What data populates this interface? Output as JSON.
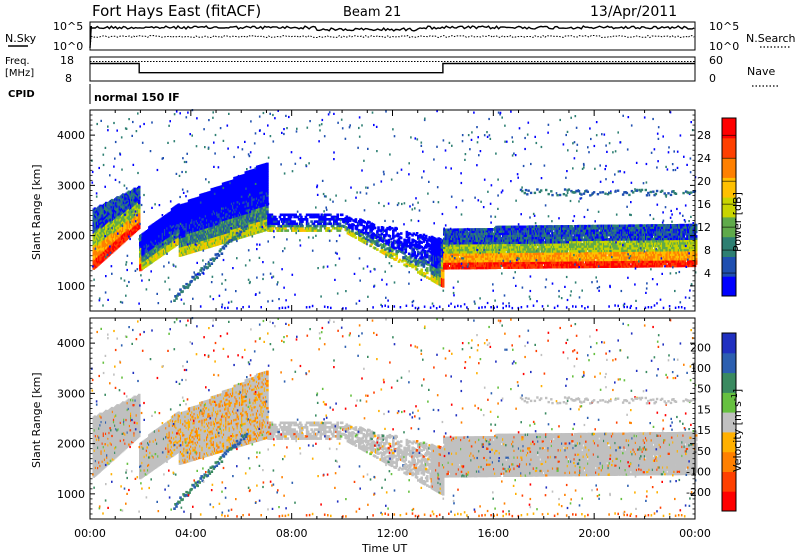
{
  "header": {
    "station": "Fort Hays East (fitACF)",
    "beam": "Beam 21",
    "date": "13/Apr/2011"
  },
  "panels": {
    "nsky_label": "N.Sky",
    "nsearch_label": "N.Search",
    "nsky_ticks": [
      "10^5",
      "10^0"
    ],
    "nsearch_ticks": [
      "10^5",
      "10^0"
    ],
    "freq_label_1": "Freq.",
    "freq_label_2": "[MHz]",
    "freq_ticks": [
      "18",
      "8"
    ],
    "nave_label": "Nave",
    "nave_ticks": [
      "60",
      "0"
    ],
    "cpid_label": "CPID",
    "cpid_value": "normal 150 IF"
  },
  "chart_data": [
    {
      "type": "heatmap",
      "name": "power",
      "ylabel": "Slant Range [km]",
      "xlabel": "Time UT",
      "xlim_hours": [
        0,
        24
      ],
      "ylim": [
        500,
        4500
      ],
      "x_ticks": [
        "00:00",
        "04:00",
        "08:00",
        "12:00",
        "16:00",
        "20:00",
        "00:00"
      ],
      "y_ticks": [
        "1000",
        "2000",
        "3000",
        "4000"
      ],
      "colorbar_label": "Power [dB]",
      "colorbar_ticks": [
        "4",
        "8",
        "12",
        "16",
        "20",
        "24",
        "28"
      ],
      "colorbar_range": [
        0,
        31
      ],
      "colors": [
        "#0000ff",
        "#1f4fb0",
        "#2e7f72",
        "#5faa4a",
        "#c8d400",
        "#ffc000",
        "#ff8000",
        "#ff4000",
        "#ff0000"
      ]
    },
    {
      "type": "heatmap",
      "name": "velocity",
      "ylabel": "Slant Range [km]",
      "xlabel": "Time UT",
      "xlim_hours": [
        0,
        24
      ],
      "ylim": [
        500,
        4500
      ],
      "x_ticks": [
        "00:00",
        "04:00",
        "08:00",
        "12:00",
        "16:00",
        "20:00",
        "00:00"
      ],
      "y_ticks": [
        "1000",
        "2000",
        "3000",
        "4000"
      ],
      "colorbar_label": "Velocity [m s-1]",
      "colorbar_ticks": [
        "200",
        "100",
        "50",
        "15",
        "-15",
        "-50",
        "-100",
        "-200"
      ],
      "colors": [
        "#2030c0",
        "#2c5fb0",
        "#3a8a60",
        "#66c040",
        "#c0c0c0",
        "#ffb000",
        "#ff8000",
        "#ff4000",
        "#ff0000"
      ]
    },
    {
      "type": "line",
      "name": "frequency",
      "x_hours": [
        0,
        1.95,
        1.95,
        14.0,
        14.0,
        24
      ],
      "y_mhz": [
        15.5,
        15.5,
        10.5,
        10.5,
        15.5,
        15.5
      ]
    }
  ],
  "axis": {
    "xlabel": "Time UT"
  },
  "colorbars": {
    "power_label": "Power [dB]",
    "velocity_label": "Velocity [m s",
    "velocity_label_sup": "-1",
    "velocity_label_end": "]"
  }
}
